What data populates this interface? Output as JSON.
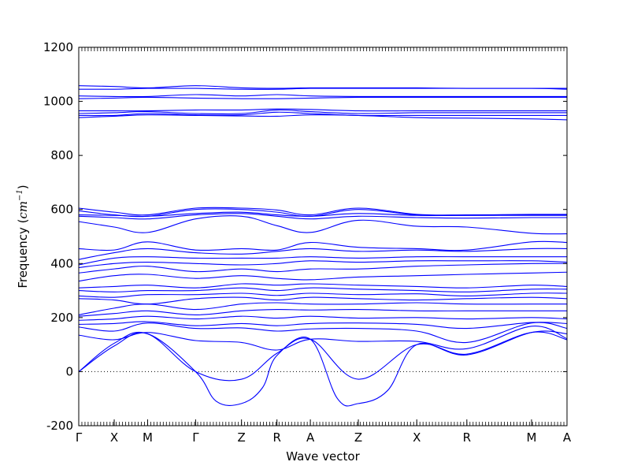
{
  "chart_data": {
    "type": "line",
    "xlabel": "Wave vector",
    "ylabel": "Frequency (cm⁻¹)",
    "ylabel_parts": {
      "prefix": "Frequency (",
      "unit_base": "cm",
      "unit_exp": "−1",
      "suffix": ")"
    },
    "ylim": [
      -200,
      1200
    ],
    "yticks": [
      -200,
      0,
      200,
      400,
      600,
      800,
      1000,
      1200
    ],
    "xlim": [
      0,
      11.7
    ],
    "xticks": [
      {
        "label": "Γ",
        "x": 0
      },
      {
        "label": "X",
        "x": 0.85
      },
      {
        "label": "M",
        "x": 1.65
      },
      {
        "label": "Γ",
        "x": 2.8
      },
      {
        "label": "Z",
        "x": 3.9
      },
      {
        "label": "R",
        "x": 4.75
      },
      {
        "label": "A",
        "x": 5.55
      },
      {
        "label": "Z",
        "x": 6.7
      },
      {
        "label": "X",
        "x": 8.1
      },
      {
        "label": "R",
        "x": 9.3
      },
      {
        "label": "M",
        "x": 10.85
      },
      {
        "label": "A",
        "x": 11.7
      }
    ],
    "zero_line": {
      "y": 0,
      "style": "dotted"
    },
    "grid": false,
    "line_color": "#0000ff",
    "series": [
      {
        "x": [
          0,
          0.85,
          1.65,
          2.8,
          3.9,
          4.75,
          5.55,
          6.7,
          8.1,
          9.3,
          10.85,
          11.7
        ],
        "y": [
          0,
          105,
          140,
          0,
          -28,
          68,
          120,
          -28,
          100,
          65,
          145,
          118
        ]
      },
      {
        "x": [
          0,
          0.85,
          1.65,
          2.8,
          3.3,
          3.9,
          4.4,
          4.75,
          5.55,
          6.2,
          6.7,
          7.4,
          8.1,
          9.3,
          10.85,
          11.7
        ],
        "y": [
          0,
          95,
          140,
          0,
          -110,
          -118,
          -60,
          60,
          120,
          -100,
          -118,
          -70,
          100,
          62,
          145,
          140
        ]
      },
      {
        "x": [
          0,
          0.85,
          1.65,
          2.8,
          3.9,
          4.75,
          5.55,
          6.7,
          8.1,
          9.3,
          10.85,
          11.7
        ],
        "y": [
          135,
          118,
          145,
          115,
          108,
          80,
          120,
          112,
          112,
          85,
          168,
          122
        ]
      },
      {
        "x": [
          0,
          0.85,
          1.65,
          2.8,
          3.9,
          4.75,
          5.55,
          6.7,
          8.1,
          9.3,
          10.85,
          11.7
        ],
        "y": [
          165,
          150,
          180,
          160,
          162,
          150,
          158,
          160,
          150,
          108,
          180,
          160
        ]
      },
      {
        "x": [
          0,
          0.85,
          1.65,
          2.8,
          3.9,
          4.75,
          5.55,
          6.7,
          8.1,
          9.3,
          10.85,
          11.7
        ],
        "y": [
          175,
          178,
          185,
          170,
          178,
          170,
          178,
          180,
          175,
          160,
          182,
          178
        ]
      },
      {
        "x": [
          0,
          0.85,
          1.65,
          2.8,
          3.9,
          4.75,
          5.55,
          6.7,
          8.1,
          9.3,
          10.85,
          11.7
        ],
        "y": [
          190,
          195,
          205,
          195,
          205,
          198,
          205,
          198,
          200,
          195,
          200,
          195
        ]
      },
      {
        "x": [
          0,
          0.85,
          1.65,
          2.8,
          3.9,
          4.75,
          5.55,
          6.7,
          8.1,
          9.3,
          10.85,
          11.7
        ],
        "y": [
          205,
          215,
          225,
          210,
          225,
          230,
          228,
          230,
          225,
          225,
          225,
          225
        ]
      },
      {
        "x": [
          0,
          0.85,
          1.65,
          2.8,
          3.9,
          4.75,
          5.55,
          6.7,
          8.1,
          9.3,
          10.85,
          11.7
        ],
        "y": [
          210,
          235,
          250,
          230,
          250,
          255,
          250,
          250,
          255,
          250,
          250,
          250
        ]
      },
      {
        "x": [
          0,
          0.85,
          1.65,
          2.8,
          3.9,
          4.75,
          5.55,
          6.7,
          8.1,
          9.3,
          10.85,
          11.7
        ],
        "y": [
          270,
          265,
          250,
          270,
          275,
          265,
          275,
          270,
          265,
          270,
          275,
          270
        ]
      },
      {
        "x": [
          0,
          0.85,
          1.65,
          2.8,
          3.9,
          4.75,
          5.55,
          6.7,
          8.1,
          9.3,
          10.85,
          11.7
        ],
        "y": [
          280,
          275,
          285,
          285,
          290,
          282,
          290,
          285,
          288,
          280,
          290,
          290
        ]
      },
      {
        "x": [
          0,
          0.85,
          1.65,
          2.8,
          3.9,
          4.75,
          5.55,
          6.7,
          8.1,
          9.3,
          10.85,
          11.7
        ],
        "y": [
          300,
          295,
          300,
          300,
          310,
          300,
          310,
          305,
          300,
          295,
          305,
          305
        ]
      },
      {
        "x": [
          0,
          0.85,
          1.65,
          2.8,
          3.9,
          4.75,
          5.55,
          6.7,
          8.1,
          9.3,
          10.85,
          11.7
        ],
        "y": [
          310,
          315,
          320,
          310,
          325,
          320,
          325,
          320,
          315,
          310,
          320,
          315
        ]
      },
      {
        "x": [
          0,
          0.85,
          1.65,
          2.8,
          3.9,
          4.75,
          5.55,
          6.7,
          8.1,
          9.3,
          10.85,
          11.7
        ],
        "y": [
          335,
          355,
          360,
          345,
          355,
          345,
          340,
          350,
          355,
          360,
          365,
          368
        ]
      },
      {
        "x": [
          0,
          0.85,
          1.65,
          2.8,
          3.9,
          4.75,
          5.55,
          6.7,
          8.1,
          9.3,
          10.85,
          11.7
        ],
        "y": [
          365,
          380,
          390,
          370,
          380,
          370,
          380,
          380,
          390,
          395,
          400,
          400
        ]
      },
      {
        "x": [
          0,
          0.85,
          1.65,
          2.8,
          3.9,
          4.75,
          5.55,
          6.7,
          8.1,
          9.3,
          10.85,
          11.7
        ],
        "y": [
          385,
          400,
          405,
          400,
          395,
          400,
          410,
          405,
          410,
          410,
          410,
          405
        ]
      },
      {
        "x": [
          0,
          0.85,
          1.65,
          2.8,
          3.9,
          4.75,
          5.55,
          6.7,
          8.1,
          9.3,
          10.85,
          11.7
        ],
        "y": [
          395,
          420,
          425,
          420,
          420,
          420,
          425,
          420,
          425,
          425,
          425,
          425
        ]
      },
      {
        "x": [
          0,
          0.85,
          1.65,
          2.8,
          3.9,
          4.75,
          5.55,
          6.7,
          8.1,
          9.3,
          10.85,
          11.7
        ],
        "y": [
          415,
          440,
          455,
          440,
          435,
          445,
          455,
          445,
          450,
          445,
          455,
          455
        ]
      },
      {
        "x": [
          0,
          0.85,
          1.65,
          2.8,
          3.9,
          4.75,
          5.55,
          6.7,
          8.1,
          9.3,
          10.85,
          11.7
        ],
        "y": [
          455,
          450,
          480,
          450,
          455,
          450,
          478,
          460,
          455,
          450,
          480,
          478
        ]
      },
      {
        "x": [
          0,
          0.85,
          1.65,
          2.8,
          3.9,
          4.75,
          5.55,
          6.7,
          8.1,
          9.3,
          10.85,
          11.7
        ],
        "y": [
          555,
          535,
          515,
          565,
          575,
          540,
          515,
          560,
          538,
          535,
          512,
          510
        ]
      },
      {
        "x": [
          0,
          0.85,
          1.65,
          2.8,
          3.9,
          4.75,
          5.55,
          6.7,
          8.1,
          9.3,
          10.85,
          11.7
        ],
        "y": [
          575,
          570,
          565,
          580,
          585,
          575,
          565,
          575,
          570,
          568,
          570,
          570
        ]
      },
      {
        "x": [
          0,
          0.85,
          1.65,
          2.8,
          3.9,
          4.75,
          5.55,
          6.7,
          8.1,
          9.3,
          10.85,
          11.7
        ],
        "y": [
          580,
          578,
          575,
          585,
          590,
          580,
          575,
          585,
          578,
          578,
          578,
          578
        ]
      },
      {
        "x": [
          0,
          0.85,
          1.65,
          2.8,
          3.9,
          4.75,
          5.55,
          6.7,
          8.1,
          9.3,
          10.85,
          11.7
        ],
        "y": [
          595,
          580,
          575,
          600,
          600,
          590,
          575,
          600,
          580,
          578,
          580,
          580
        ]
      },
      {
        "x": [
          0,
          0.85,
          1.65,
          2.8,
          3.9,
          4.75,
          5.55,
          6.7,
          8.1,
          9.3,
          10.85,
          11.7
        ],
        "y": [
          605,
          590,
          580,
          605,
          605,
          598,
          580,
          605,
          582,
          580,
          582,
          582
        ]
      },
      {
        "x": [
          0,
          0.85,
          1.65,
          2.8,
          3.9,
          4.75,
          5.55,
          6.7,
          8.1,
          9.3,
          10.85,
          11.7
        ],
        "y": [
          940,
          945,
          950,
          948,
          946,
          945,
          950,
          948,
          940,
          938,
          935,
          932
        ]
      },
      {
        "x": [
          0,
          0.85,
          1.65,
          2.8,
          3.9,
          4.75,
          5.55,
          6.7,
          8.1,
          9.3,
          10.85,
          11.7
        ],
        "y": [
          948,
          948,
          955,
          950,
          950,
          960,
          955,
          948,
          948,
          948,
          948,
          948
        ]
      },
      {
        "x": [
          0,
          0.85,
          1.65,
          2.8,
          3.9,
          4.75,
          5.55,
          6.7,
          8.1,
          9.3,
          10.85,
          11.7
        ],
        "y": [
          955,
          958,
          962,
          955,
          955,
          968,
          962,
          955,
          958,
          958,
          958,
          958
        ]
      },
      {
        "x": [
          0,
          0.85,
          1.65,
          2.8,
          3.9,
          4.75,
          5.55,
          6.7,
          8.1,
          9.3,
          10.85,
          11.7
        ],
        "y": [
          965,
          965,
          965,
          968,
          968,
          972,
          970,
          965,
          965,
          965,
          965,
          965
        ]
      },
      {
        "x": [
          0,
          0.85,
          1.65,
          2.8,
          3.9,
          4.75,
          5.55,
          6.7,
          8.1,
          9.3,
          10.85,
          11.7
        ],
        "y": [
          1010,
          1012,
          1015,
          1012,
          1010,
          1010,
          1012,
          1015,
          1015,
          1015,
          1015,
          1015
        ]
      },
      {
        "x": [
          0,
          0.85,
          1.65,
          2.8,
          3.9,
          4.75,
          5.55,
          6.7,
          8.1,
          9.3,
          10.85,
          11.7
        ],
        "y": [
          1020,
          1018,
          1018,
          1025,
          1020,
          1025,
          1020,
          1018,
          1018,
          1018,
          1018,
          1018
        ]
      },
      {
        "x": [
          0,
          0.85,
          1.65,
          2.8,
          3.9,
          4.75,
          5.55,
          6.7,
          8.1,
          9.3,
          10.85,
          11.7
        ],
        "y": [
          1045,
          1045,
          1048,
          1048,
          1045,
          1045,
          1048,
          1048,
          1048,
          1048,
          1048,
          1048
        ]
      },
      {
        "x": [
          0,
          0.85,
          1.65,
          2.8,
          3.9,
          4.75,
          5.55,
          6.7,
          8.1,
          9.3,
          10.85,
          11.7
        ],
        "y": [
          1058,
          1055,
          1050,
          1058,
          1050,
          1048,
          1050,
          1050,
          1050,
          1048,
          1048,
          1045
        ]
      }
    ]
  }
}
